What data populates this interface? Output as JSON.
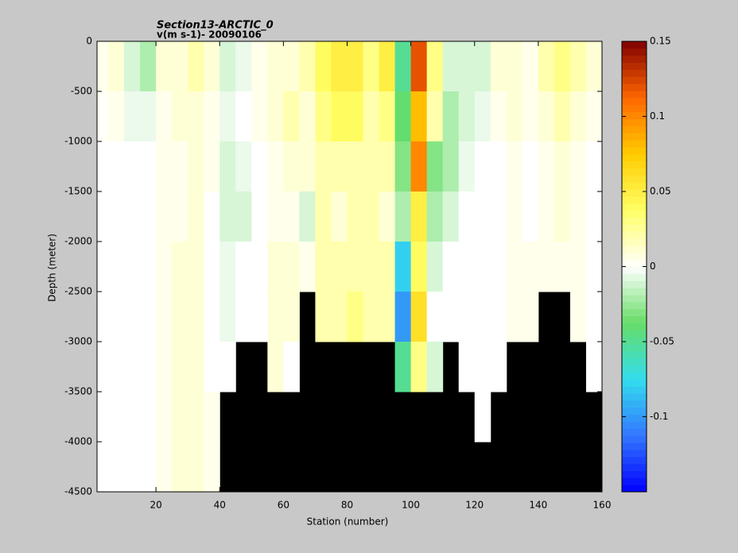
{
  "chart_data": {
    "type": "heatmap",
    "title": "Section13-ARCTIC_0",
    "subtitle": "v(m s-1)- 20090106",
    "xlabel": "Station (number)",
    "ylabel": "Depth (meter)",
    "xlim": [
      1.5,
      160
    ],
    "ylim": [
      -4500,
      0
    ],
    "xticks": [
      20,
      40,
      60,
      80,
      100,
      120,
      140,
      160
    ],
    "yticks": [
      0,
      -500,
      -1000,
      -1500,
      -2000,
      -2500,
      -3000,
      -3500,
      -4000,
      -4500
    ],
    "xbins": [
      1.5,
      5,
      10,
      15,
      20,
      25,
      30,
      35,
      40,
      45,
      50,
      55,
      60,
      65,
      70,
      75,
      80,
      85,
      90,
      95,
      100,
      105,
      110,
      115,
      120,
      125,
      130,
      135,
      140,
      145,
      150,
      155,
      160
    ],
    "ybins": [
      0,
      -500,
      -1000,
      -1500,
      -2000,
      -2500,
      -3000,
      -3500,
      -4000,
      -4500
    ],
    "values": [
      [
        0.005,
        0.002,
        0,
        0,
        0,
        0,
        0,
        0,
        0
      ],
      [
        0.01,
        0.005,
        0,
        0,
        0,
        0,
        0,
        0,
        0
      ],
      [
        -0.01,
        -0.005,
        0,
        0,
        0,
        0,
        0,
        0,
        0
      ],
      [
        -0.02,
        -0.005,
        0,
        0,
        0,
        0,
        0,
        0,
        0
      ],
      [
        0.01,
        0.005,
        0.005,
        0.005,
        0.005,
        0.005,
        0.005,
        0.005,
        0.005
      ],
      [
        0.01,
        0.01,
        0.005,
        0.005,
        0.01,
        0.01,
        0.01,
        0.01,
        0.01
      ],
      [
        0.02,
        0.01,
        0.01,
        0.01,
        0.01,
        0.01,
        0.01,
        0.01,
        0.01
      ],
      [
        0.01,
        0.005,
        0.005,
        0,
        0,
        0,
        0,
        0.005,
        0.005
      ],
      [
        -0.01,
        -0.005,
        -0.01,
        -0.01,
        -0.005,
        -0.005,
        0,
        null,
        null
      ],
      [
        -0.005,
        0,
        -0.005,
        -0.01,
        0,
        0,
        null,
        null,
        null
      ],
      [
        0.005,
        0.005,
        0,
        0,
        0,
        0,
        null,
        null,
        null
      ],
      [
        0.01,
        0.01,
        0.005,
        0.005,
        0.01,
        0.01,
        0.01,
        null,
        null
      ],
      [
        0.01,
        0.02,
        0.01,
        0.005,
        0.01,
        0.01,
        0,
        null,
        null
      ],
      [
        0.02,
        0.01,
        0.01,
        -0.01,
        0.005,
        null,
        null,
        null,
        null
      ],
      [
        0.04,
        0.03,
        0.02,
        0.02,
        0.02,
        0.02,
        null,
        null,
        null
      ],
      [
        0.05,
        0.04,
        0.02,
        0.01,
        0.02,
        0.02,
        null,
        null,
        null
      ],
      [
        0.05,
        0.04,
        0.02,
        0.02,
        0.02,
        0.03,
        null,
        null,
        null
      ],
      [
        0.03,
        0.02,
        0.02,
        0.02,
        0.02,
        0.02,
        null,
        null,
        null
      ],
      [
        0.05,
        0.03,
        0.02,
        0.01,
        0.02,
        0.02,
        null,
        null,
        null
      ],
      [
        -0.05,
        -0.04,
        -0.03,
        -0.02,
        -0.08,
        -0.1,
        -0.05,
        null,
        null
      ],
      [
        0.12,
        0.08,
        0.1,
        0.05,
        0.04,
        0.06,
        0.03,
        null,
        null
      ],
      [
        0.03,
        0.02,
        -0.03,
        -0.02,
        -0.01,
        0,
        -0.01,
        null,
        null
      ],
      [
        -0.01,
        -0.02,
        -0.02,
        -0.01,
        0,
        0,
        null,
        null,
        null
      ],
      [
        -0.01,
        -0.01,
        -0.005,
        0,
        0,
        0,
        0,
        null,
        null
      ],
      [
        -0.01,
        -0.005,
        0,
        0,
        0,
        0,
        0,
        0,
        null
      ],
      [
        0.01,
        0.005,
        0,
        0,
        0,
        0,
        0,
        null,
        null
      ],
      [
        0.01,
        0.01,
        0.005,
        0.005,
        0.005,
        0.005,
        null,
        null,
        null
      ],
      [
        0.005,
        0.005,
        0,
        0,
        0.005,
        0.005,
        null,
        null,
        null
      ],
      [
        0.02,
        0.01,
        0.005,
        0.005,
        0.005,
        null,
        null,
        null,
        null
      ],
      [
        0.03,
        0.02,
        0.01,
        0.01,
        0.005,
        null,
        null,
        null,
        null
      ],
      [
        0.02,
        0.01,
        0.005,
        0.005,
        0.005,
        0.005,
        null,
        null,
        null
      ],
      [
        0.01,
        0.005,
        0,
        0,
        0,
        0,
        0,
        null,
        null
      ]
    ],
    "clim": [
      -0.15,
      0.15
    ],
    "cticks": [
      0.15,
      0.1,
      0.05,
      0,
      -0.05,
      -0.1
    ],
    "colormap": [
      "#0000ff",
      "#3377ff",
      "#33ddee",
      "#66dd66",
      "#ffffff",
      "#ffff66",
      "#ffcc00",
      "#ff6600",
      "#800000"
    ],
    "mask_color": "#000000"
  }
}
